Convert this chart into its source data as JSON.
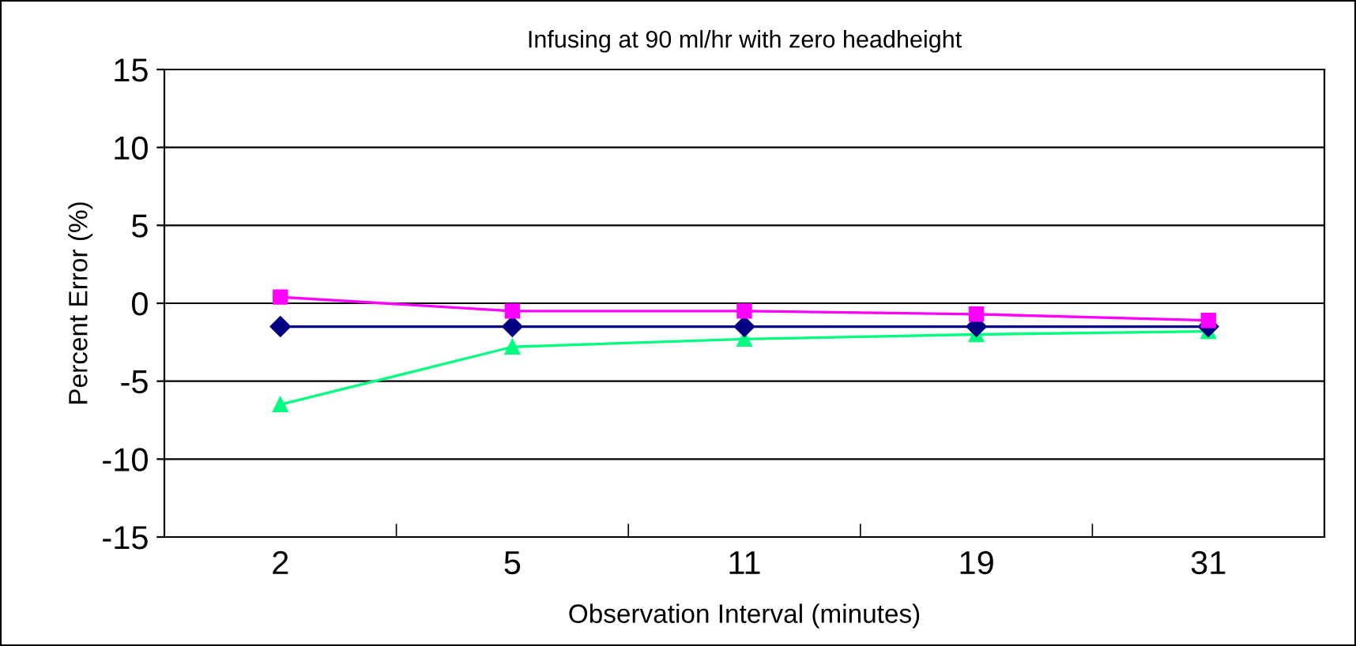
{
  "chart_data": {
    "type": "line",
    "title": "Infusing at 90 ml/hr with zero headheight",
    "xlabel": "Observation Interval (minutes)",
    "ylabel": "Percent Error (%)",
    "categories": [
      "2",
      "5",
      "11",
      "19",
      "31"
    ],
    "series": [
      {
        "color": "#ff00ff",
        "marker": "square",
        "values": [
          0.4,
          -0.5,
          -0.5,
          -0.7,
          -1.1
        ]
      },
      {
        "color": "#000080",
        "marker": "diamond",
        "values": [
          -1.5,
          -1.5,
          -1.5,
          -1.5,
          -1.5
        ]
      },
      {
        "color": "#00ff80",
        "marker": "triangle",
        "values": [
          -6.5,
          -2.8,
          -2.3,
          -2.0,
          -1.8
        ]
      }
    ],
    "ylim": [
      -15,
      15
    ],
    "yticks": [
      -15,
      -10,
      -5,
      0,
      5,
      10,
      15
    ],
    "grid": "y",
    "legend": false
  }
}
